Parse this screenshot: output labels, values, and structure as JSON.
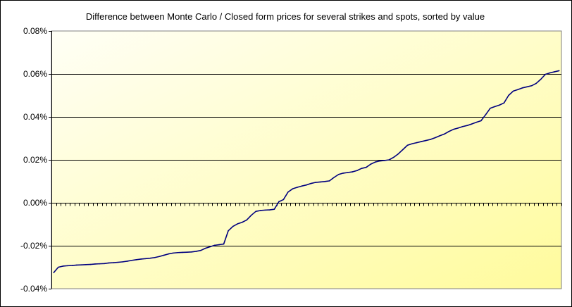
{
  "chart_data": {
    "type": "line",
    "title": "Difference between Monte Carlo / Closed form prices for several strikes and spots, sorted by value",
    "xlabel": "",
    "ylabel": "",
    "ylim": [
      -0.04,
      0.08
    ],
    "yticks": [
      -0.04,
      -0.02,
      0.0,
      0.02,
      0.04,
      0.06,
      0.08
    ],
    "ytick_labels": [
      "-0.04%",
      "-0.02%",
      "0.00%",
      "0.02%",
      "0.04%",
      "0.06%",
      "0.08%"
    ],
    "y_unit": "%",
    "grid": "horizontal",
    "legend": "none",
    "colors": {
      "line": "#00007f",
      "plot_background_start": "#fffff6",
      "plot_background_end": "#fffb9c",
      "gridline": "#000000"
    },
    "series": [
      {
        "values": [
          -0.0325,
          -0.03,
          -0.0295,
          -0.0293,
          -0.0292,
          -0.029,
          -0.0289,
          -0.0288,
          -0.0287,
          -0.0285,
          -0.0284,
          -0.0283,
          -0.028,
          -0.0279,
          -0.0277,
          -0.0275,
          -0.0272,
          -0.0268,
          -0.0265,
          -0.0262,
          -0.026,
          -0.0258,
          -0.0255,
          -0.025,
          -0.0244,
          -0.0238,
          -0.0234,
          -0.0232,
          -0.0231,
          -0.023,
          -0.0229,
          -0.0226,
          -0.0222,
          -0.0212,
          -0.0205,
          -0.0198,
          -0.0195,
          -0.0192,
          -0.013,
          -0.011,
          -0.0098,
          -0.0091,
          -0.008,
          -0.0058,
          -0.004,
          -0.0036,
          -0.0034,
          -0.0033,
          -0.003,
          0.0005,
          0.0015,
          0.005,
          0.0065,
          0.0072,
          0.0078,
          0.0083,
          0.009,
          0.0095,
          0.0097,
          0.0099,
          0.0102,
          0.0118,
          0.0132,
          0.0138,
          0.0141,
          0.0144,
          0.015,
          0.016,
          0.0165,
          0.018,
          0.019,
          0.0195,
          0.0197,
          0.02,
          0.0212,
          0.0228,
          0.0248,
          0.0268,
          0.0275,
          0.028,
          0.0285,
          0.029,
          0.0295,
          0.0303,
          0.0312,
          0.032,
          0.0332,
          0.0342,
          0.0348,
          0.0355,
          0.036,
          0.0367,
          0.0375,
          0.0382,
          0.041,
          0.044,
          0.0448,
          0.0455,
          0.0465,
          0.05,
          0.052,
          0.0527,
          0.0535,
          0.054,
          0.0545,
          0.0556,
          0.0575,
          0.0598,
          0.0605,
          0.061,
          0.0615
        ]
      }
    ]
  }
}
